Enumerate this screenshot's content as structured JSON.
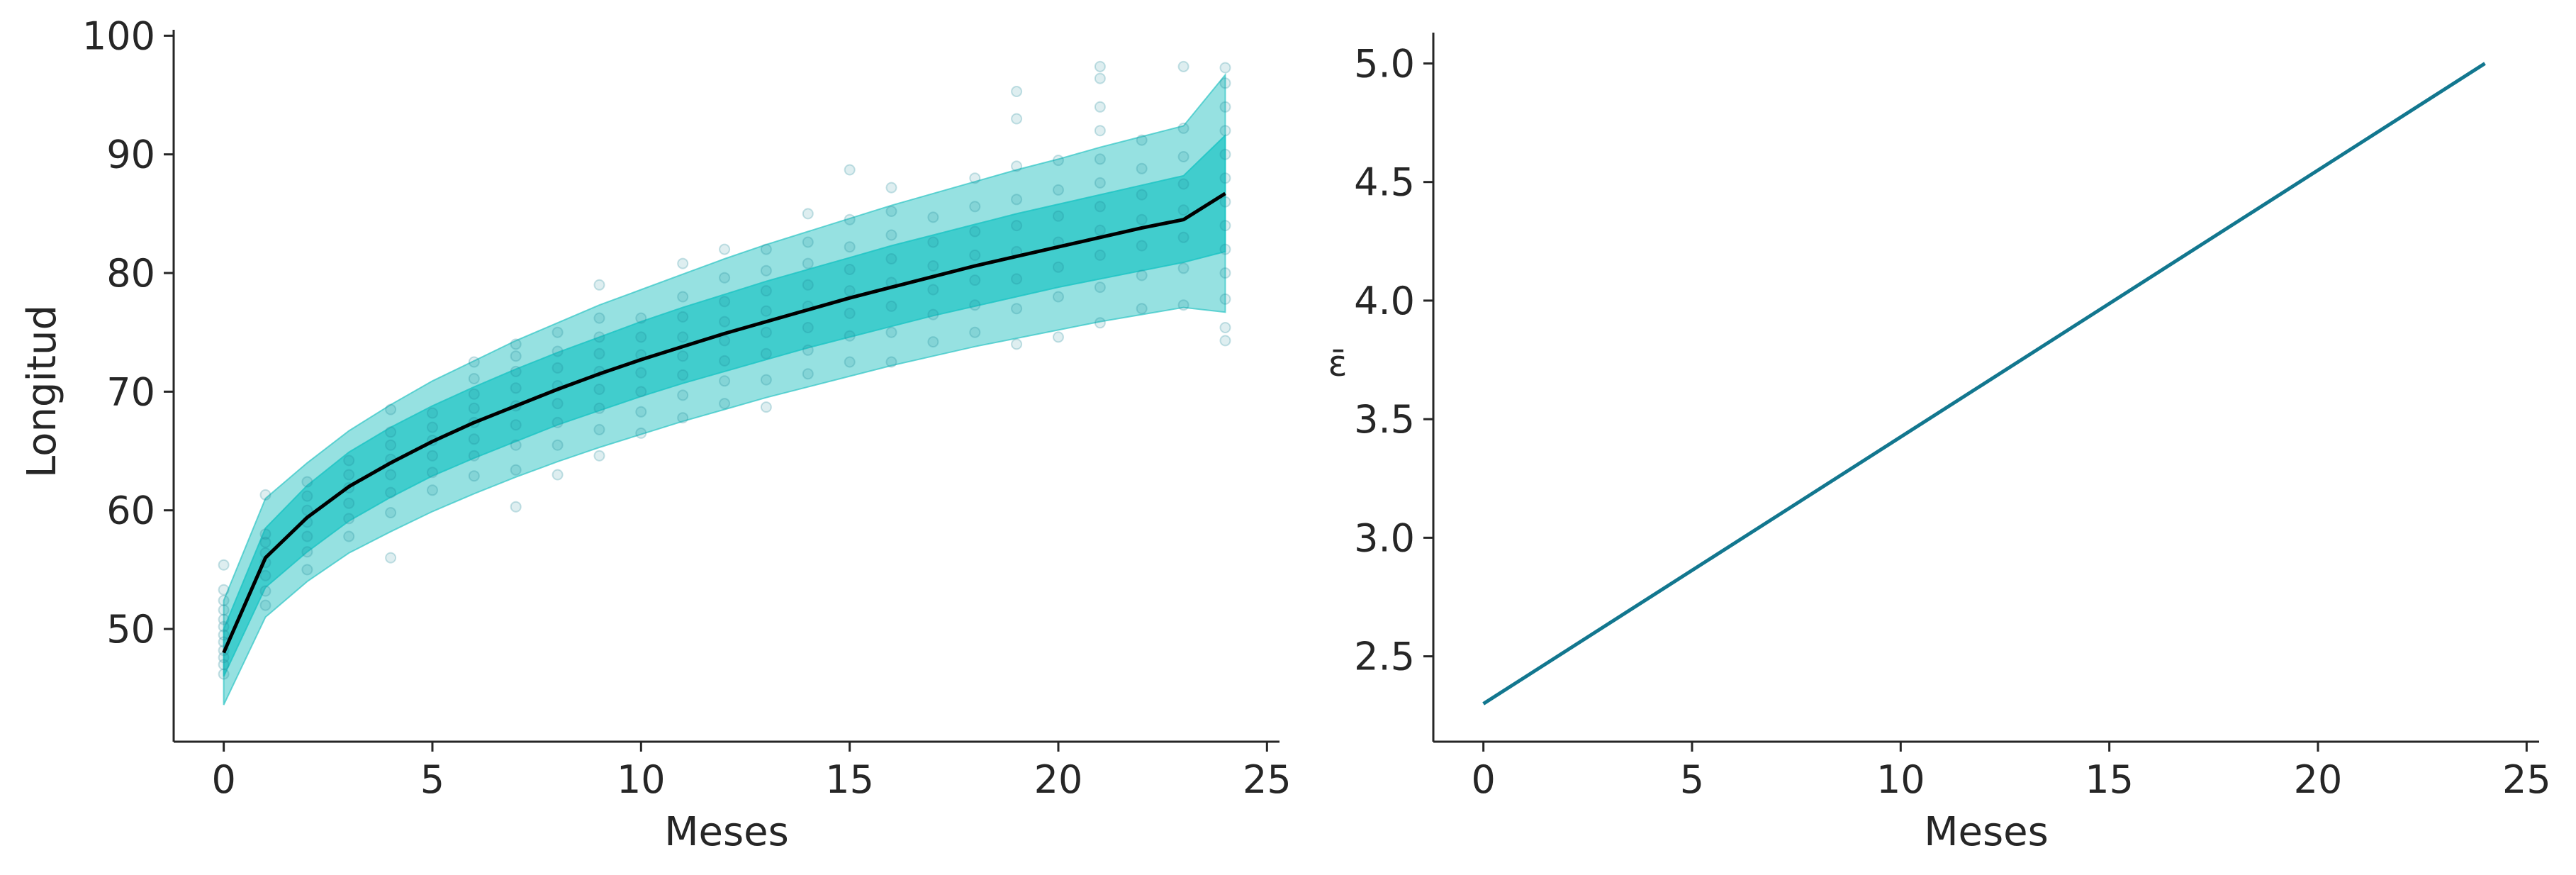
{
  "chart_data": [
    {
      "type": "line",
      "xlabel": "Meses",
      "ylabel": "Longitud",
      "xlim": [
        -1.2,
        25.3
      ],
      "ylim": [
        40.5,
        100.5
      ],
      "xticks": [
        0,
        5,
        10,
        15,
        20,
        25
      ],
      "yticks": [
        50,
        60,
        70,
        80,
        90,
        100
      ],
      "grid": false,
      "colors": {
        "outer_band": "#2ec4c4",
        "inner_band": "#1cc4c4",
        "mean_line": "#000000",
        "points": "#1f8a9a"
      },
      "x": [
        0,
        1,
        2,
        3,
        4,
        5,
        6,
        7,
        8,
        9,
        10,
        11,
        12,
        13,
        14,
        15,
        16,
        17,
        18,
        19,
        20,
        21,
        22,
        23,
        24
      ],
      "series": [
        {
          "role": "mean",
          "values": [
            48.0,
            56.0,
            59.4,
            62.0,
            64.0,
            65.8,
            67.4,
            68.8,
            70.2,
            71.5,
            72.7,
            73.8,
            74.9,
            75.9,
            76.9,
            77.9,
            78.8,
            79.7,
            80.6,
            81.4,
            82.2,
            83.0,
            83.8,
            84.5,
            86.7
          ]
        },
        {
          "role": "outer_band",
          "lower": [
            43.6,
            51.0,
            54.0,
            56.4,
            58.2,
            59.9,
            61.4,
            62.8,
            64.1,
            65.3,
            66.4,
            67.5,
            68.5,
            69.5,
            70.4,
            71.3,
            72.2,
            73.0,
            73.8,
            74.5,
            75.2,
            75.9,
            76.5,
            77.1,
            76.7
          ],
          "upper": [
            52.4,
            61.0,
            64.0,
            66.7,
            68.9,
            70.9,
            72.6,
            74.3,
            75.8,
            77.3,
            78.6,
            79.9,
            81.2,
            82.4,
            83.5,
            84.6,
            85.7,
            86.7,
            87.7,
            88.7,
            89.6,
            90.6,
            91.5,
            92.4,
            96.7
          ]
        },
        {
          "role": "inner_band",
          "lower": [
            46.0,
            53.5,
            56.5,
            59.1,
            61.1,
            62.9,
            64.4,
            65.8,
            67.2,
            68.4,
            69.6,
            70.7,
            71.7,
            72.7,
            73.7,
            74.6,
            75.5,
            76.4,
            77.2,
            78.0,
            78.8,
            79.5,
            80.2,
            80.9,
            81.8
          ],
          "upper": [
            50.0,
            58.5,
            62.1,
            64.9,
            67.0,
            68.8,
            70.4,
            71.9,
            73.3,
            74.6,
            75.9,
            77.1,
            78.2,
            79.3,
            80.3,
            81.3,
            82.3,
            83.2,
            84.1,
            85.0,
            85.8,
            86.6,
            87.4,
            88.2,
            91.6
          ]
        },
        {
          "role": "observed_points",
          "points": [
            [
              0,
              46.2
            ],
            [
              0,
              47.0
            ],
            [
              0,
              47.6
            ],
            [
              0,
              48.2
            ],
            [
              0,
              48.9
            ],
            [
              0,
              49.5
            ],
            [
              0,
              50.2
            ],
            [
              0,
              50.8
            ],
            [
              0,
              51.6
            ],
            [
              0,
              52.4
            ],
            [
              0,
              53.3
            ],
            [
              0,
              55.4
            ],
            [
              1,
              52.0
            ],
            [
              1,
              53.2
            ],
            [
              1,
              54.5
            ],
            [
              1,
              55.6
            ],
            [
              1,
              56.4
            ],
            [
              1,
              57.3
            ],
            [
              1,
              58.0
            ],
            [
              1,
              61.3
            ],
            [
              2,
              55.0
            ],
            [
              2,
              56.5
            ],
            [
              2,
              57.8
            ],
            [
              2,
              59.0
            ],
            [
              2,
              60.0
            ],
            [
              2,
              61.2
            ],
            [
              2,
              62.4
            ],
            [
              3,
              57.8
            ],
            [
              3,
              59.3
            ],
            [
              3,
              60.6
            ],
            [
              3,
              61.9
            ],
            [
              3,
              63.0
            ],
            [
              3,
              64.2
            ],
            [
              4,
              56.0
            ],
            [
              4,
              59.8
            ],
            [
              4,
              61.5
            ],
            [
              4,
              63.0
            ],
            [
              4,
              64.3
            ],
            [
              4,
              65.5
            ],
            [
              4,
              66.6
            ],
            [
              4,
              68.5
            ],
            [
              5,
              61.7
            ],
            [
              5,
              63.2
            ],
            [
              5,
              64.6
            ],
            [
              5,
              65.9
            ],
            [
              5,
              67.0
            ],
            [
              5,
              68.2
            ],
            [
              6,
              62.9
            ],
            [
              6,
              64.6
            ],
            [
              6,
              66.0
            ],
            [
              6,
              67.4
            ],
            [
              6,
              68.6
            ],
            [
              6,
              69.8
            ],
            [
              6,
              71.1
            ],
            [
              6,
              72.5
            ],
            [
              7,
              60.3
            ],
            [
              7,
              63.4
            ],
            [
              7,
              65.5
            ],
            [
              7,
              67.2
            ],
            [
              7,
              68.8
            ],
            [
              7,
              70.3
            ],
            [
              7,
              71.7
            ],
            [
              7,
              73.0
            ],
            [
              7,
              74.0
            ],
            [
              8,
              63.0
            ],
            [
              8,
              65.5
            ],
            [
              8,
              67.4
            ],
            [
              8,
              69.0
            ],
            [
              8,
              70.5
            ],
            [
              8,
              72.0
            ],
            [
              8,
              73.4
            ],
            [
              8,
              75.0
            ],
            [
              9,
              64.6
            ],
            [
              9,
              66.8
            ],
            [
              9,
              68.6
            ],
            [
              9,
              70.2
            ],
            [
              9,
              71.7
            ],
            [
              9,
              73.2
            ],
            [
              9,
              74.6
            ],
            [
              9,
              76.2
            ],
            [
              9,
              79.0
            ],
            [
              10,
              66.5
            ],
            [
              10,
              68.3
            ],
            [
              10,
              70.0
            ],
            [
              10,
              71.6
            ],
            [
              10,
              73.1
            ],
            [
              10,
              74.6
            ],
            [
              10,
              76.2
            ],
            [
              11,
              67.8
            ],
            [
              11,
              69.7
            ],
            [
              11,
              71.4
            ],
            [
              11,
              73.0
            ],
            [
              11,
              74.6
            ],
            [
              11,
              76.3
            ],
            [
              11,
              78.0
            ],
            [
              11,
              80.8
            ],
            [
              12,
              69.0
            ],
            [
              12,
              70.9
            ],
            [
              12,
              72.6
            ],
            [
              12,
              74.3
            ],
            [
              12,
              75.9
            ],
            [
              12,
              77.6
            ],
            [
              12,
              79.6
            ],
            [
              12,
              82.0
            ],
            [
              13,
              68.7
            ],
            [
              13,
              71.0
            ],
            [
              13,
              73.2
            ],
            [
              13,
              75.0
            ],
            [
              13,
              76.8
            ],
            [
              13,
              78.5
            ],
            [
              13,
              80.2
            ],
            [
              13,
              82.0
            ],
            [
              14,
              71.5
            ],
            [
              14,
              73.5
            ],
            [
              14,
              75.4
            ],
            [
              14,
              77.2
            ],
            [
              14,
              79.0
            ],
            [
              14,
              80.8
            ],
            [
              14,
              82.6
            ],
            [
              14,
              85.0
            ],
            [
              15,
              72.5
            ],
            [
              15,
              74.7
            ],
            [
              15,
              76.6
            ],
            [
              15,
              78.5
            ],
            [
              15,
              80.3
            ],
            [
              15,
              82.2
            ],
            [
              15,
              84.5
            ],
            [
              15,
              88.7
            ],
            [
              16,
              72.5
            ],
            [
              16,
              75.0
            ],
            [
              16,
              77.2
            ],
            [
              16,
              79.2
            ],
            [
              16,
              81.2
            ],
            [
              16,
              83.2
            ],
            [
              16,
              85.2
            ],
            [
              16,
              87.2
            ],
            [
              17,
              74.2
            ],
            [
              17,
              76.5
            ],
            [
              17,
              78.6
            ],
            [
              17,
              80.6
            ],
            [
              17,
              82.6
            ],
            [
              17,
              84.7
            ],
            [
              18,
              75.0
            ],
            [
              18,
              77.3
            ],
            [
              18,
              79.4
            ],
            [
              18,
              81.5
            ],
            [
              18,
              83.5
            ],
            [
              18,
              85.6
            ],
            [
              18,
              88.0
            ],
            [
              19,
              74.0
            ],
            [
              19,
              77.0
            ],
            [
              19,
              79.5
            ],
            [
              19,
              81.8
            ],
            [
              19,
              84.0
            ],
            [
              19,
              86.2
            ],
            [
              19,
              89.0
            ],
            [
              19,
              93.0
            ],
            [
              19,
              95.3
            ],
            [
              20,
              74.6
            ],
            [
              20,
              78.0
            ],
            [
              20,
              80.5
            ],
            [
              20,
              82.6
            ],
            [
              20,
              84.8
            ],
            [
              20,
              87.0
            ],
            [
              20,
              89.5
            ],
            [
              21,
              75.8
            ],
            [
              21,
              78.8
            ],
            [
              21,
              81.5
            ],
            [
              21,
              83.6
            ],
            [
              21,
              85.6
            ],
            [
              21,
              87.6
            ],
            [
              21,
              89.6
            ],
            [
              21,
              92.0
            ],
            [
              21,
              94.0
            ],
            [
              21,
              96.4
            ],
            [
              21,
              97.4
            ],
            [
              22,
              77.0
            ],
            [
              22,
              79.8
            ],
            [
              22,
              82.3
            ],
            [
              22,
              84.5
            ],
            [
              22,
              86.6
            ],
            [
              22,
              88.8
            ],
            [
              22,
              91.2
            ],
            [
              23,
              77.3
            ],
            [
              23,
              80.4
            ],
            [
              23,
              83.0
            ],
            [
              23,
              85.3
            ],
            [
              23,
              87.5
            ],
            [
              23,
              89.8
            ],
            [
              23,
              92.2
            ],
            [
              23,
              97.4
            ],
            [
              24,
              74.3
            ],
            [
              24,
              75.4
            ],
            [
              24,
              77.8
            ],
            [
              24,
              80.0
            ],
            [
              24,
              82.0
            ],
            [
              24,
              84.0
            ],
            [
              24,
              86.0
            ],
            [
              24,
              88.0
            ],
            [
              24,
              90.0
            ],
            [
              24,
              92.0
            ],
            [
              24,
              94.0
            ],
            [
              24,
              96.0
            ],
            [
              24,
              97.3
            ]
          ]
        }
      ]
    },
    {
      "type": "line",
      "xlabel": "Meses",
      "ylabel": "ε̄",
      "xlim": [
        -1.2,
        25.3
      ],
      "ylim": [
        2.14,
        5.13
      ],
      "xticks": [
        0,
        5,
        10,
        15,
        20,
        25
      ],
      "yticks": [
        2.5,
        3.0,
        3.5,
        4.0,
        4.5,
        5.0
      ],
      "ytick_labels": [
        "2.5",
        "3.0",
        "3.5",
        "4.0",
        "4.5",
        "5.0"
      ],
      "grid": false,
      "colors": {
        "line": "#12778f"
      },
      "series": [
        {
          "x": [
            0,
            24
          ],
          "values": [
            2.3,
            5.0
          ]
        }
      ]
    }
  ]
}
